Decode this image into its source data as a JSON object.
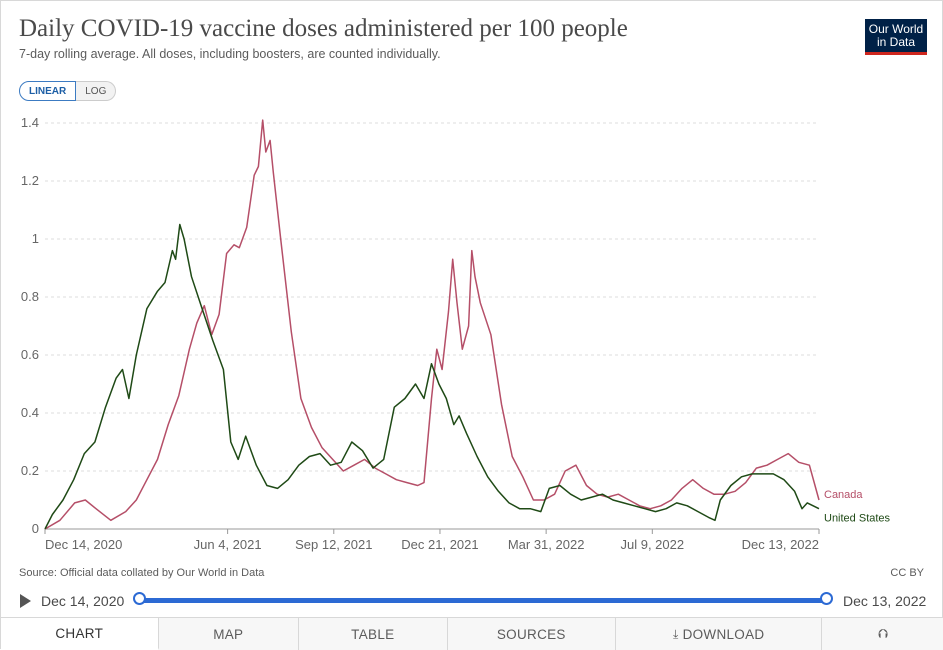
{
  "header": {
    "title": "Daily COVID-19 vaccine doses administered per 100 people",
    "subtitle": "7-day rolling average. All doses, including boosters, are counted individually.",
    "logo_line1": "Our World",
    "logo_line2": "in Data"
  },
  "toggle": {
    "linear": "LINEAR",
    "log": "LOG"
  },
  "footer": {
    "source": "Source: Official data collated by Our World in Data",
    "license": "CC BY"
  },
  "timeline": {
    "start": "Dec 14, 2020",
    "end": "Dec 13, 2022"
  },
  "tabs": {
    "chart": "CHART",
    "map": "MAP",
    "table": "TABLE",
    "sources": "SOURCES",
    "download": "DOWNLOAD"
  },
  "colors": {
    "canada": "#b54f68",
    "united_states": "#1f4a16",
    "grid": "#dddddd",
    "axis": "#999999"
  },
  "chart_data": {
    "type": "line",
    "title": "Daily COVID-19 vaccine doses administered per 100 people",
    "ylim": [
      0,
      1.4
    ],
    "yticks": [
      "0",
      "0.2",
      "0.4",
      "0.6",
      "0.8",
      "1",
      "1.2",
      "1.4"
    ],
    "x_range": [
      "2020-12-14",
      "2022-12-13"
    ],
    "xticks": [
      "Dec 14, 2020",
      "Jun 4, 2021",
      "Sep 12, 2021",
      "Dec 21, 2021",
      "Mar 31, 2022",
      "Jul 9, 2022",
      "Dec 13, 2022"
    ],
    "grid": "horizontal dashed",
    "legend": "line-end labels",
    "series": [
      {
        "name": "Canada",
        "color": "#b54f68",
        "points": [
          [
            "2020-12-14",
            0
          ],
          [
            "2020-12-28",
            0.03
          ],
          [
            "2021-01-11",
            0.09
          ],
          [
            "2021-01-21",
            0.1
          ],
          [
            "2021-01-31",
            0.07
          ],
          [
            "2021-02-14",
            0.03
          ],
          [
            "2021-02-28",
            0.06
          ],
          [
            "2021-03-10",
            0.1
          ],
          [
            "2021-03-20",
            0.17
          ],
          [
            "2021-03-30",
            0.24
          ],
          [
            "2021-04-09",
            0.36
          ],
          [
            "2021-04-19",
            0.46
          ],
          [
            "2021-04-29",
            0.62
          ],
          [
            "2021-05-06",
            0.71
          ],
          [
            "2021-05-13",
            0.77
          ],
          [
            "2021-05-20",
            0.67
          ],
          [
            "2021-05-27",
            0.74
          ],
          [
            "2021-06-03",
            0.95
          ],
          [
            "2021-06-10",
            0.98
          ],
          [
            "2021-06-15",
            0.97
          ],
          [
            "2021-06-22",
            1.04
          ],
          [
            "2021-06-29",
            1.22
          ],
          [
            "2021-07-03",
            1.25
          ],
          [
            "2021-07-07",
            1.41
          ],
          [
            "2021-07-10",
            1.3
          ],
          [
            "2021-07-14",
            1.34
          ],
          [
            "2021-07-17",
            1.23
          ],
          [
            "2021-07-24",
            1.0
          ],
          [
            "2021-08-03",
            0.68
          ],
          [
            "2021-08-12",
            0.45
          ],
          [
            "2021-08-22",
            0.35
          ],
          [
            "2021-09-01",
            0.28
          ],
          [
            "2021-09-11",
            0.24
          ],
          [
            "2021-09-21",
            0.2
          ],
          [
            "2021-10-01",
            0.22
          ],
          [
            "2021-10-11",
            0.24
          ],
          [
            "2021-10-21",
            0.21
          ],
          [
            "2021-10-31",
            0.19
          ],
          [
            "2021-11-10",
            0.17
          ],
          [
            "2021-11-20",
            0.16
          ],
          [
            "2021-11-30",
            0.15
          ],
          [
            "2021-12-06",
            0.16
          ],
          [
            "2021-12-13",
            0.45
          ],
          [
            "2021-12-18",
            0.62
          ],
          [
            "2021-12-23",
            0.55
          ],
          [
            "2021-12-29",
            0.75
          ],
          [
            "2022-01-02",
            0.93
          ],
          [
            "2022-01-06",
            0.78
          ],
          [
            "2022-01-11",
            0.62
          ],
          [
            "2022-01-17",
            0.7
          ],
          [
            "2022-01-20",
            0.96
          ],
          [
            "2022-01-23",
            0.87
          ],
          [
            "2022-01-28",
            0.78
          ],
          [
            "2022-02-07",
            0.67
          ],
          [
            "2022-02-17",
            0.43
          ],
          [
            "2022-02-27",
            0.25
          ],
          [
            "2022-03-09",
            0.18
          ],
          [
            "2022-03-19",
            0.1
          ],
          [
            "2022-03-29",
            0.1
          ],
          [
            "2022-04-08",
            0.12
          ],
          [
            "2022-04-18",
            0.2
          ],
          [
            "2022-04-28",
            0.22
          ],
          [
            "2022-05-08",
            0.15
          ],
          [
            "2022-05-18",
            0.12
          ],
          [
            "2022-05-28",
            0.11
          ],
          [
            "2022-06-07",
            0.12
          ],
          [
            "2022-06-17",
            0.1
          ],
          [
            "2022-06-27",
            0.08
          ],
          [
            "2022-07-07",
            0.07
          ],
          [
            "2022-07-17",
            0.08
          ],
          [
            "2022-07-27",
            0.1
          ],
          [
            "2022-08-06",
            0.14
          ],
          [
            "2022-08-16",
            0.17
          ],
          [
            "2022-08-26",
            0.14
          ],
          [
            "2022-09-05",
            0.12
          ],
          [
            "2022-09-15",
            0.12
          ],
          [
            "2022-09-25",
            0.13
          ],
          [
            "2022-10-05",
            0.16
          ],
          [
            "2022-10-15",
            0.21
          ],
          [
            "2022-10-25",
            0.22
          ],
          [
            "2022-11-04",
            0.24
          ],
          [
            "2022-11-14",
            0.26
          ],
          [
            "2022-11-24",
            0.23
          ],
          [
            "2022-12-04",
            0.22
          ],
          [
            "2022-12-13",
            0.1
          ]
        ]
      },
      {
        "name": "United States",
        "color": "#1f4a16",
        "points": [
          [
            "2020-12-14",
            0
          ],
          [
            "2020-12-21",
            0.05
          ],
          [
            "2020-12-31",
            0.1
          ],
          [
            "2021-01-10",
            0.17
          ],
          [
            "2021-01-20",
            0.26
          ],
          [
            "2021-01-30",
            0.3
          ],
          [
            "2021-02-09",
            0.42
          ],
          [
            "2021-02-19",
            0.52
          ],
          [
            "2021-02-25",
            0.55
          ],
          [
            "2021-03-03",
            0.45
          ],
          [
            "2021-03-10",
            0.6
          ],
          [
            "2021-03-20",
            0.76
          ],
          [
            "2021-03-30",
            0.82
          ],
          [
            "2021-04-06",
            0.85
          ],
          [
            "2021-04-13",
            0.96
          ],
          [
            "2021-04-16",
            0.93
          ],
          [
            "2021-04-20",
            1.05
          ],
          [
            "2021-04-24",
            1.0
          ],
          [
            "2021-05-01",
            0.87
          ],
          [
            "2021-05-11",
            0.76
          ],
          [
            "2021-05-21",
            0.65
          ],
          [
            "2021-05-31",
            0.55
          ],
          [
            "2021-06-07",
            0.3
          ],
          [
            "2021-06-14",
            0.24
          ],
          [
            "2021-06-21",
            0.32
          ],
          [
            "2021-07-01",
            0.22
          ],
          [
            "2021-07-11",
            0.15
          ],
          [
            "2021-07-21",
            0.14
          ],
          [
            "2021-07-31",
            0.17
          ],
          [
            "2021-08-10",
            0.22
          ],
          [
            "2021-08-20",
            0.25
          ],
          [
            "2021-08-30",
            0.26
          ],
          [
            "2021-09-09",
            0.22
          ],
          [
            "2021-09-19",
            0.23
          ],
          [
            "2021-09-29",
            0.3
          ],
          [
            "2021-10-09",
            0.27
          ],
          [
            "2021-10-19",
            0.21
          ],
          [
            "2021-10-29",
            0.24
          ],
          [
            "2021-11-08",
            0.42
          ],
          [
            "2021-11-18",
            0.45
          ],
          [
            "2021-11-28",
            0.5
          ],
          [
            "2021-12-06",
            0.45
          ],
          [
            "2021-12-13",
            0.57
          ],
          [
            "2021-12-20",
            0.5
          ],
          [
            "2021-12-27",
            0.45
          ],
          [
            "2022-01-03",
            0.36
          ],
          [
            "2022-01-08",
            0.39
          ],
          [
            "2022-01-15",
            0.33
          ],
          [
            "2022-01-25",
            0.25
          ],
          [
            "2022-02-04",
            0.18
          ],
          [
            "2022-02-14",
            0.13
          ],
          [
            "2022-02-24",
            0.09
          ],
          [
            "2022-03-06",
            0.07
          ],
          [
            "2022-03-16",
            0.07
          ],
          [
            "2022-03-26",
            0.06
          ],
          [
            "2022-04-03",
            0.14
          ],
          [
            "2022-04-13",
            0.15
          ],
          [
            "2022-04-23",
            0.12
          ],
          [
            "2022-05-03",
            0.1
          ],
          [
            "2022-05-13",
            0.11
          ],
          [
            "2022-05-23",
            0.12
          ],
          [
            "2022-06-02",
            0.1
          ],
          [
            "2022-06-12",
            0.09
          ],
          [
            "2022-06-22",
            0.08
          ],
          [
            "2022-07-02",
            0.07
          ],
          [
            "2022-07-12",
            0.06
          ],
          [
            "2022-07-22",
            0.07
          ],
          [
            "2022-08-01",
            0.09
          ],
          [
            "2022-08-11",
            0.08
          ],
          [
            "2022-08-21",
            0.06
          ],
          [
            "2022-08-31",
            0.04
          ],
          [
            "2022-09-06",
            0.03
          ],
          [
            "2022-09-11",
            0.1
          ],
          [
            "2022-09-21",
            0.15
          ],
          [
            "2022-10-01",
            0.18
          ],
          [
            "2022-10-11",
            0.19
          ],
          [
            "2022-10-21",
            0.19
          ],
          [
            "2022-10-31",
            0.19
          ],
          [
            "2022-11-10",
            0.17
          ],
          [
            "2022-11-20",
            0.13
          ],
          [
            "2022-11-27",
            0.07
          ],
          [
            "2022-12-02",
            0.09
          ],
          [
            "2022-12-13",
            0.07
          ]
        ]
      }
    ]
  }
}
